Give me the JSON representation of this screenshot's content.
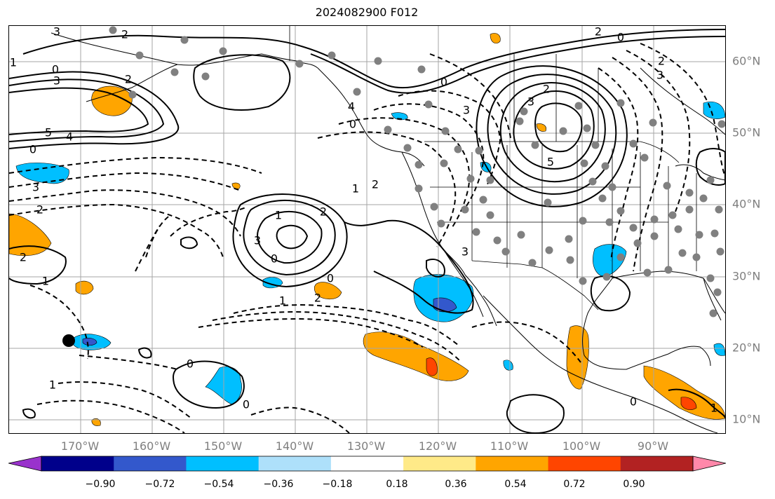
{
  "title": "2024082900 F012",
  "colors": {
    "land_line": "#000000",
    "grid": "#a6a6a6",
    "contour": "#000000",
    "axis_label": "#7f7f7f",
    "station_dot": "#808080",
    "marker": "#000000"
  },
  "lon_labels": [
    "170°W",
    "160°W",
    "150°W",
    "140°W",
    "130°W",
    "120°W",
    "110°W",
    "100°W",
    "90°W"
  ],
  "lat_labels": [
    "60°N",
    "50°N",
    "40°N",
    "30°N",
    "20°N",
    "10°N"
  ],
  "colorbar": {
    "ticks": [
      "−0.90",
      "−0.72",
      "−0.54",
      "−0.36",
      "−0.18",
      "0.18",
      "0.36",
      "0.54",
      "0.72",
      "0.90"
    ],
    "colors": [
      "#9932cc",
      "#00008b",
      "#3358cc",
      "#00bfff",
      "#aee0fa",
      "#ffffff",
      "#ffea88",
      "#ffa500",
      "#ff4500",
      "#b22222",
      "#ff88aa"
    ],
    "extend": "both"
  },
  "contour_labels": [
    {
      "text": "3"
    },
    {
      "text": "2"
    },
    {
      "text": "1"
    },
    {
      "text": "0"
    },
    {
      "text": "3"
    },
    {
      "text": "2"
    },
    {
      "text": "5"
    },
    {
      "text": "4"
    },
    {
      "text": "0"
    },
    {
      "text": "3"
    },
    {
      "text": "2"
    },
    {
      "text": "2"
    },
    {
      "text": "1"
    },
    {
      "text": "1"
    },
    {
      "text": "0"
    },
    {
      "text": "3"
    },
    {
      "text": "2"
    },
    {
      "text": "0"
    },
    {
      "text": "4"
    },
    {
      "text": "3"
    },
    {
      "text": "2"
    },
    {
      "text": "3"
    },
    {
      "text": "5"
    },
    {
      "text": "0"
    },
    {
      "text": "2"
    },
    {
      "text": "1"
    },
    {
      "text": "1"
    },
    {
      "text": "2"
    },
    {
      "text": "0"
    },
    {
      "text": "2"
    },
    {
      "text": "0"
    },
    {
      "text": "1"
    },
    {
      "text": "0"
    },
    {
      "text": "0"
    },
    {
      "text": "3"
    },
    {
      "text": "2"
    },
    {
      "text": "3"
    },
    {
      "text": "0"
    },
    {
      "text": "1"
    }
  ],
  "marker": {
    "name": "black-marker"
  }
}
